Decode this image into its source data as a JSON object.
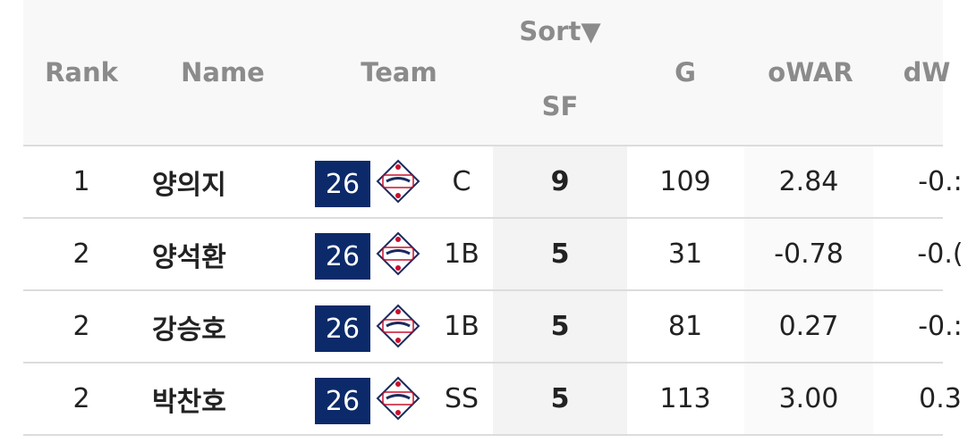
{
  "header": {
    "rank": "Rank",
    "name": "Name",
    "team": "Team",
    "sort": "Sort▼",
    "sf": "SF",
    "g": "G",
    "owar": "oWAR",
    "dwar": "dW"
  },
  "rows": [
    {
      "rank": "1",
      "name": "양의지",
      "number": "26",
      "pos": "C",
      "sf": "9",
      "g": "109",
      "owar": "2.84",
      "dwar": "-0.:"
    },
    {
      "rank": "2",
      "name": "양석환",
      "number": "26",
      "pos": "1B",
      "sf": "5",
      "g": "31",
      "owar": "-0.78",
      "dwar": "-0.("
    },
    {
      "rank": "2",
      "name": "강승호",
      "number": "26",
      "pos": "1B",
      "sf": "5",
      "g": "81",
      "owar": "0.27",
      "dwar": "-0.:"
    },
    {
      "rank": "2",
      "name": "박찬호",
      "number": "26",
      "pos": "SS",
      "sf": "5",
      "g": "113",
      "owar": "3.00",
      "dwar": "0.3"
    }
  ],
  "logo_icon": "bears-team-logo-icon",
  "colors": {
    "team_number_bg": "#0c2a6a",
    "logo_red": "#c8102e",
    "logo_navy": "#1a2a5e"
  }
}
